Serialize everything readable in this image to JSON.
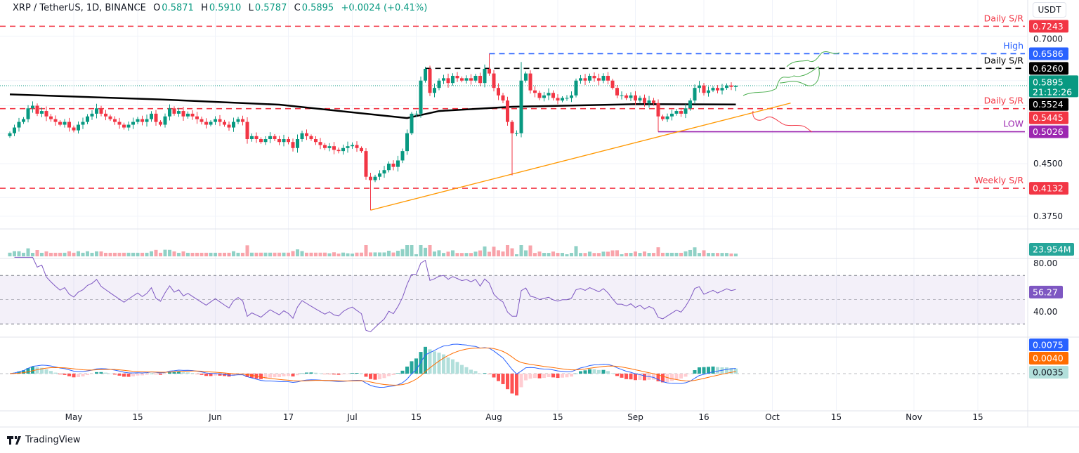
{
  "header": {
    "symbol": "XRP / TetherUS, 1D, BINANCE",
    "open_label": "O",
    "open": "0.5871",
    "high_label": "H",
    "high": "0.5910",
    "low_label": "L",
    "low": "0.5787",
    "close_label": "C",
    "close": "0.5895",
    "change": "+0.0024 (+0.41%)"
  },
  "currency_button": "USDT",
  "branding": "TradingView",
  "colors": {
    "up": "#089981",
    "down": "#f23645",
    "ma": "#000000",
    "trendline": "#ff9800",
    "macd": "#2962ff",
    "signal": "#ff6d00",
    "rsi": "#7e57c2",
    "low": "#9c27b0",
    "high": "#2962ff"
  },
  "chart_data": {
    "type": "candlestick",
    "scale": "log",
    "grid": true,
    "x_range": [
      "Apr 17",
      "Sep 23"
    ],
    "x_ticks": [
      "May",
      "15",
      "Jun",
      "17",
      "Jul",
      "15",
      "Aug",
      "15",
      "Sep",
      "16",
      "Oct",
      "15",
      "Nov",
      "15"
    ],
    "y_ticks": [
      "0.7000",
      "0.4500",
      "0.3750"
    ],
    "close": [
      0.5,
      0.51,
      0.52,
      0.525,
      0.545,
      0.55,
      0.535,
      0.54,
      0.53,
      0.525,
      0.52,
      0.515,
      0.52,
      0.51,
      0.505,
      0.515,
      0.52,
      0.53,
      0.535,
      0.545,
      0.535,
      0.53,
      0.525,
      0.52,
      0.515,
      0.51,
      0.515,
      0.52,
      0.525,
      0.52,
      0.525,
      0.535,
      0.52,
      0.515,
      0.53,
      0.545,
      0.535,
      0.54,
      0.53,
      0.535,
      0.53,
      0.525,
      0.52,
      0.515,
      0.52,
      0.525,
      0.52,
      0.515,
      0.51,
      0.52,
      0.525,
      0.52,
      0.49,
      0.495,
      0.49,
      0.485,
      0.49,
      0.495,
      0.49,
      0.485,
      0.49,
      0.485,
      0.475,
      0.49,
      0.5,
      0.495,
      0.49,
      0.485,
      0.48,
      0.475,
      0.478,
      0.472,
      0.47,
      0.475,
      0.478,
      0.48,
      0.475,
      0.47,
      0.43,
      0.425,
      0.43,
      0.435,
      0.44,
      0.45,
      0.445,
      0.455,
      0.47,
      0.5,
      0.535,
      0.535,
      0.6,
      0.625,
      0.575,
      0.585,
      0.6,
      0.605,
      0.595,
      0.61,
      0.605,
      0.6,
      0.605,
      0.6,
      0.61,
      0.595,
      0.625,
      0.615,
      0.585,
      0.57,
      0.56,
      0.52,
      0.5,
      0.5,
      0.6,
      0.615,
      0.58,
      0.575,
      0.565,
      0.57,
      0.575,
      0.565,
      0.56,
      0.565,
      0.565,
      0.57,
      0.6,
      0.605,
      0.6,
      0.61,
      0.605,
      0.6,
      0.61,
      0.6,
      0.585,
      0.57,
      0.57,
      0.565,
      0.57,
      0.56,
      0.565,
      0.555,
      0.56,
      0.555,
      0.53,
      0.525,
      0.53,
      0.535,
      0.54,
      0.535,
      0.545,
      0.56,
      0.585,
      0.59,
      0.575,
      0.58,
      0.585,
      0.58,
      0.585,
      0.59,
      0.5871,
      0.5895
    ],
    "extremes": [
      {
        "date": "Jul 5",
        "low": 0.383
      },
      {
        "date": "Jul 31",
        "high": 0.6586
      },
      {
        "date": "Aug 5",
        "low": 0.432
      },
      {
        "date": "Aug 7",
        "high": 0.64
      },
      {
        "date": "Sep 6",
        "low": 0.5026
      },
      {
        "date": "Sep 23",
        "high": 0.591,
        "low": 0.5787
      }
    ],
    "moving_average": [
      [
        "Apr 17",
        0.572
      ],
      [
        "May 20",
        0.562
      ],
      [
        "Jun 15",
        0.552
      ],
      [
        "Jul 13",
        0.527
      ],
      [
        "Jul 20",
        0.54
      ],
      [
        "Aug 5",
        0.548
      ],
      [
        "Sep 1",
        0.553
      ],
      [
        "Sep 23",
        0.5524
      ]
    ],
    "trendline": [
      [
        "Jul 5",
        0.383
      ],
      [
        "Oct 5",
        0.555
      ]
    ],
    "levels": [
      {
        "label": "Daily S/R",
        "value": "0.7243",
        "color": "#f23645",
        "from": "Apr 17",
        "style": "dash"
      },
      {
        "label": "High",
        "value": "0.6586",
        "color": "#2962ff",
        "from": "Jul 31",
        "style": "dash"
      },
      {
        "label": "Daily S/R",
        "value": "0.6260",
        "color": "#000000",
        "from": "Jul 17",
        "style": "dash"
      },
      {
        "label": "Daily S/R",
        "value": "0.5445",
        "color": "#f23645",
        "from": "Apr 17",
        "style": "dash"
      },
      {
        "label": "LOW",
        "value": "0.5026",
        "color": "#9c27b0",
        "from": "Sep 6",
        "style": "solid"
      },
      {
        "label": "Weekly S/R",
        "value": "0.4132",
        "color": "#f23645",
        "from": "Apr 17",
        "style": "dash"
      }
    ],
    "last_price": {
      "value": "0.5895",
      "countdown": "21:12:26"
    },
    "ma_value": "0.5524",
    "volume": {
      "last": "23.954M"
    },
    "rsi": {
      "value": "56.27",
      "ticks": [
        "80.00",
        "40.00"
      ],
      "band": [
        30,
        70
      ]
    },
    "macd": {
      "macd": "0.0075",
      "signal": "0.0040",
      "histogram": "0.0035"
    }
  }
}
